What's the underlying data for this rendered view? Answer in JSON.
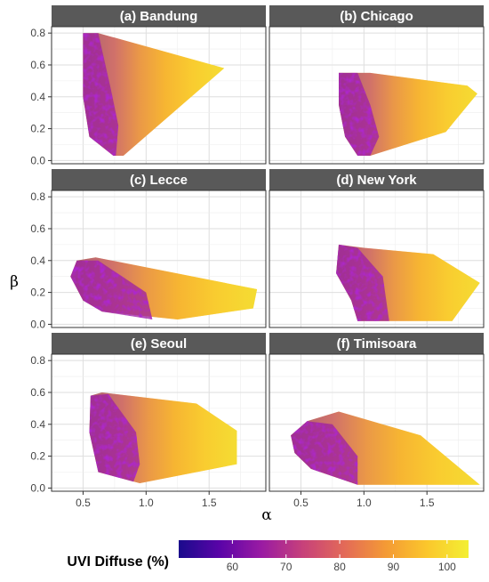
{
  "chart_data": {
    "type": "heatmap",
    "facet_layout": "3 rows x 2 columns",
    "xlabel": "α",
    "ylabel": "β",
    "xlim": [
      0.25,
      1.95
    ],
    "ylim": [
      -0.02,
      0.84
    ],
    "x_ticks": [
      "0.5",
      "1.0",
      "1.5"
    ],
    "x_tick_values": [
      0.5,
      1.0,
      1.5
    ],
    "y_ticks": [
      "0.0",
      "0.2",
      "0.4",
      "0.6",
      "0.8"
    ],
    "y_tick_values": [
      0.0,
      0.2,
      0.4,
      0.6,
      0.8
    ],
    "grid": true,
    "colorbar": {
      "title": "UVI Diffuse (%)",
      "placement": "bottom",
      "range": [
        50,
        104
      ],
      "tick_values": [
        60,
        70,
        80,
        90,
        100
      ],
      "tick_labels": [
        "60",
        "70",
        "80",
        "90",
        "100"
      ],
      "colors": [
        "#1a0b8c",
        "#5b04a8",
        "#9a1ba3",
        "#c7417a",
        "#e36a58",
        "#f49a35",
        "#fbc72c",
        "#f3ef33"
      ]
    },
    "panels": [
      {
        "name": "(a) Bandung",
        "hull": [
          [
            0.5,
            0.8
          ],
          [
            0.62,
            0.8
          ],
          [
            1.62,
            0.58
          ],
          [
            0.82,
            0.03
          ],
          [
            0.74,
            0.03
          ],
          [
            0.55,
            0.15
          ],
          [
            0.5,
            0.4
          ]
        ],
        "low_region": [
          [
            0.5,
            0.8
          ],
          [
            0.62,
            0.8
          ],
          [
            0.72,
            0.45
          ],
          [
            0.78,
            0.22
          ],
          [
            0.76,
            0.03
          ],
          [
            0.74,
            0.03
          ],
          [
            0.55,
            0.15
          ],
          [
            0.5,
            0.4
          ]
        ]
      },
      {
        "name": "(b) Chicago",
        "hull": [
          [
            0.8,
            0.55
          ],
          [
            1.05,
            0.55
          ],
          [
            1.82,
            0.47
          ],
          [
            1.9,
            0.42
          ],
          [
            1.65,
            0.18
          ],
          [
            1.05,
            0.03
          ],
          [
            0.95,
            0.03
          ],
          [
            0.85,
            0.15
          ],
          [
            0.8,
            0.35
          ]
        ],
        "low_region": [
          [
            0.8,
            0.55
          ],
          [
            0.95,
            0.55
          ],
          [
            1.05,
            0.35
          ],
          [
            1.12,
            0.15
          ],
          [
            1.05,
            0.03
          ],
          [
            0.95,
            0.03
          ],
          [
            0.85,
            0.15
          ],
          [
            0.8,
            0.35
          ]
        ]
      },
      {
        "name": "(c) Lecce",
        "hull": [
          [
            0.45,
            0.4
          ],
          [
            0.6,
            0.42
          ],
          [
            1.88,
            0.22
          ],
          [
            1.85,
            0.1
          ],
          [
            1.25,
            0.03
          ],
          [
            0.65,
            0.08
          ],
          [
            0.5,
            0.15
          ],
          [
            0.4,
            0.3
          ]
        ],
        "low_region": [
          [
            0.45,
            0.4
          ],
          [
            0.62,
            0.4
          ],
          [
            1.0,
            0.2
          ],
          [
            1.05,
            0.03
          ],
          [
            0.65,
            0.08
          ],
          [
            0.5,
            0.15
          ],
          [
            0.4,
            0.3
          ]
        ]
      },
      {
        "name": "(d) New York",
        "hull": [
          [
            0.8,
            0.5
          ],
          [
            1.0,
            0.48
          ],
          [
            1.55,
            0.44
          ],
          [
            1.92,
            0.26
          ],
          [
            1.7,
            0.02
          ],
          [
            0.95,
            0.02
          ],
          [
            0.9,
            0.15
          ],
          [
            0.78,
            0.32
          ]
        ],
        "low_region": [
          [
            0.8,
            0.5
          ],
          [
            0.95,
            0.48
          ],
          [
            1.15,
            0.3
          ],
          [
            1.2,
            0.02
          ],
          [
            0.95,
            0.02
          ],
          [
            0.9,
            0.15
          ],
          [
            0.78,
            0.32
          ]
        ]
      },
      {
        "name": "(e) Seoul",
        "hull": [
          [
            0.56,
            0.58
          ],
          [
            0.65,
            0.6
          ],
          [
            1.4,
            0.53
          ],
          [
            1.72,
            0.36
          ],
          [
            1.72,
            0.15
          ],
          [
            0.95,
            0.03
          ],
          [
            0.62,
            0.1
          ],
          [
            0.55,
            0.35
          ]
        ],
        "low_region": [
          [
            0.56,
            0.58
          ],
          [
            0.7,
            0.59
          ],
          [
            0.92,
            0.35
          ],
          [
            0.95,
            0.15
          ],
          [
            0.9,
            0.04
          ],
          [
            0.62,
            0.1
          ],
          [
            0.55,
            0.35
          ]
        ]
      },
      {
        "name": "(f) Timisoara",
        "hull": [
          [
            0.42,
            0.33
          ],
          [
            0.55,
            0.42
          ],
          [
            0.8,
            0.48
          ],
          [
            1.45,
            0.33
          ],
          [
            1.92,
            0.02
          ],
          [
            0.95,
            0.02
          ],
          [
            0.58,
            0.12
          ],
          [
            0.45,
            0.22
          ]
        ],
        "low_region": [
          [
            0.42,
            0.33
          ],
          [
            0.55,
            0.42
          ],
          [
            0.75,
            0.4
          ],
          [
            0.95,
            0.2
          ],
          [
            0.95,
            0.02
          ],
          [
            0.58,
            0.12
          ],
          [
            0.45,
            0.22
          ]
        ]
      }
    ]
  }
}
